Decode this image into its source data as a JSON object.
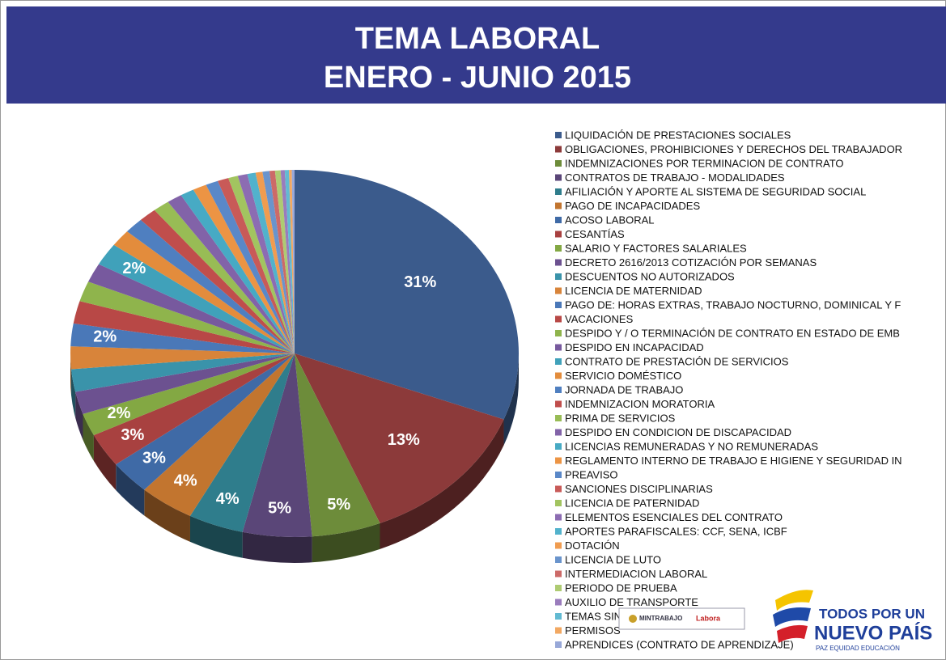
{
  "chart_data": {
    "type": "pie",
    "title": "TEMA LABORAL",
    "subtitle": "ENERO - JUNIO 2015",
    "categories": [
      "LIQUIDACIÓN DE PRESTACIONES SOCIALES",
      "OBLIGACIONES, PROHIBICIONES Y DERECHOS DEL  TRABAJADOR",
      "INDEMNIZACIONES POR TERMINACION DE CONTRATO",
      "CONTRATOS DE TRABAJO - MODALIDADES",
      "AFILIACIÓN Y APORTE AL SISTEMA DE  SEGURIDAD SOCIAL",
      "PAGO DE INCAPACIDADES",
      "ACOSO LABORAL",
      "CESANTÍAS",
      "SALARIO Y FACTORES SALARIALES",
      "DECRETO 2616/2013 COTIZACIÓN POR SEMANAS",
      "DESCUENTOS NO  AUTORIZADOS",
      "LICENCIA DE MATERNIDAD",
      "PAGO DE: HORAS EXTRAS, TRABAJO NOCTURNO, DOMINICAL Y F",
      "VACACIONES",
      "DESPIDO Y / O TERMINACIÓN DE CONTRATO EN ESTADO DE EMB",
      "DESPIDO EN INCAPACIDAD",
      "CONTRATO DE PRESTACIÓN DE SERVICIOS",
      "SERVICIO DOMÉSTICO",
      "JORNADA DE TRABAJO",
      "INDEMNIZACION MORATORIA",
      "PRIMA DE SERVICIOS",
      "DESPIDO EN CONDICION DE DISCAPACIDAD",
      "LICENCIAS REMUNERADAS Y NO REMUNERADAS",
      "REGLAMENTO INTERNO DE TRABAJO E HIGIENE Y SEGURIDAD IN",
      "PREAVISO",
      "SANCIONES DISCIPLINARIAS",
      "LICENCIA DE PATERNIDAD",
      "ELEMENTOS ESENCIALES DEL CONTRATO",
      "APORTES PARAFISCALES: CCF, SENA, ICBF",
      "DOTACIÓN",
      "LICENCIA DE LUTO",
      "INTERMEDIACION LABORAL",
      "PERIODO DE PRUEBA",
      "AUXILIO DE TRANSPORTE",
      "TEMAS SINDICALES",
      "PERMISOS",
      "APRENDICES (CONTRATO DE APRENDIZAJE)"
    ],
    "values": [
      31,
      13,
      5,
      5,
      4,
      4,
      3,
      3,
      2,
      2,
      2,
      2,
      2,
      2,
      1.8,
      1.7,
      2,
      1.5,
      1.4,
      1.3,
      1.2,
      1.1,
      1,
      1,
      0.9,
      0.8,
      0.7,
      0.7,
      0.6,
      0.5,
      0.5,
      0.4,
      0.4,
      0.3,
      0.3,
      0.2,
      0.2
    ],
    "value_labels": [
      "31%",
      "13%",
      "5%",
      "5%",
      "4%",
      "4%",
      "3%",
      "3%",
      "2%",
      null,
      null,
      null,
      "2%",
      null,
      null,
      null,
      "2%",
      null,
      null,
      null,
      null,
      null,
      null,
      null,
      null,
      null,
      null,
      null,
      null,
      null,
      null,
      null,
      null,
      null,
      null,
      null,
      null
    ],
    "colors": [
      "#3b5b8c",
      "#8c3a3a",
      "#6d8c3a",
      "#5a4678",
      "#2f7d8c",
      "#c2752f",
      "#3f6aa6",
      "#a84140",
      "#83a843",
      "#6c5190",
      "#3a93aa",
      "#d8843a",
      "#4a78b8",
      "#b84846",
      "#8fb44c",
      "#77599e",
      "#40a1ba",
      "#e38c3c",
      "#4f7fc0",
      "#c04e4c",
      "#98bc55",
      "#8263a8",
      "#47aac4",
      "#ec9444",
      "#5a88c8",
      "#c85a58",
      "#a2c460",
      "#8c6cb2",
      "#52b2cc",
      "#f09c50",
      "#6a94cc",
      "#cc6a68",
      "#aecb72",
      "#9a7cbc",
      "#62bad2",
      "#f2a862",
      "#98a8d8"
    ],
    "legend": "right",
    "logos": {
      "ministry": "MINTRABAJO",
      "network": "Labora",
      "slogan1": "TODOS POR UN",
      "slogan2": "NUEVO PAÍS",
      "motto": "PAZ  EQUIDAD  EDUCACIÓN"
    }
  }
}
